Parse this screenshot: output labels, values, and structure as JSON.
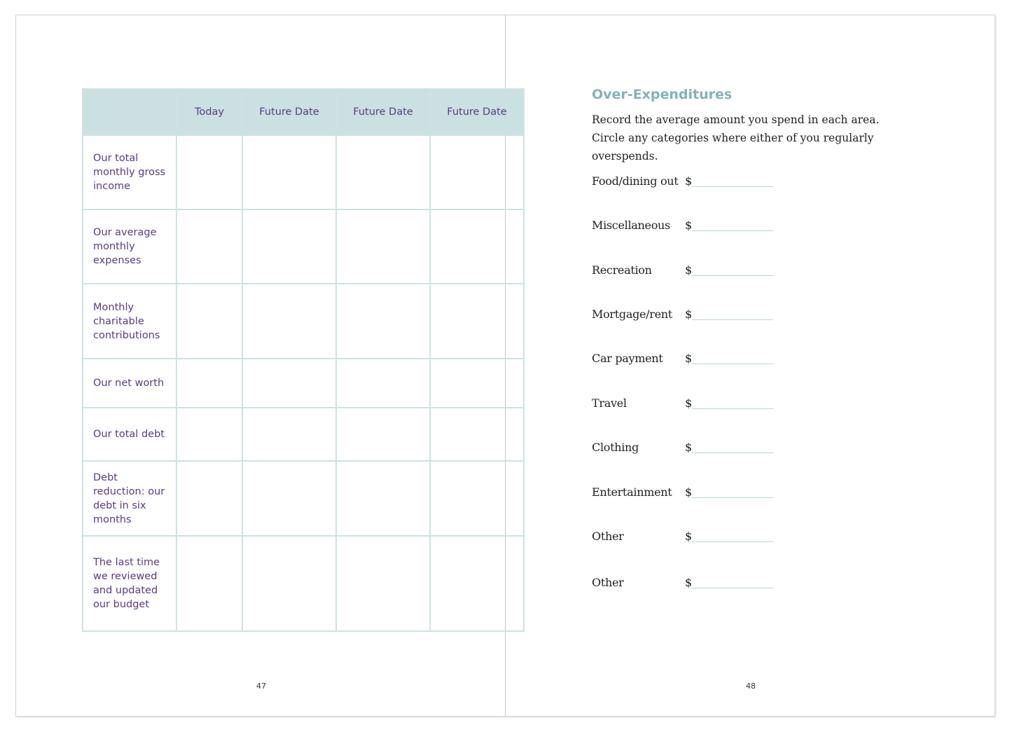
{
  "left_page": {
    "table": {
      "headers": [
        "",
        "Today",
        "Future Date",
        "Future Date",
        "Future Date"
      ],
      "rows": [
        "Our total monthly gross income",
        "Our average monthly expenses",
        "Monthly charitable contributions",
        "Our net worth",
        "Our total debt",
        "Debt reduction: our debt in six months",
        "The last time we reviewed and updated our budget"
      ]
    },
    "page_number": "47"
  },
  "right_page": {
    "title": "Over-Expenditures",
    "intro": "Record the average amount you spend in each area. Circle any categories where either of you regularly overspends.",
    "currency": "$",
    "categories": [
      "Food/dining out",
      "Miscellaneous",
      "Recreation",
      "Mortgage/rent",
      "Car payment",
      "Travel",
      "Clothing",
      "Entertainment",
      "Other",
      "Other"
    ],
    "page_number": "48"
  },
  "colors": {
    "header_fill": "#cae0e1",
    "table_text": "#5a3b84",
    "title": "#84b3b7",
    "rule": "#b9d6d8"
  }
}
